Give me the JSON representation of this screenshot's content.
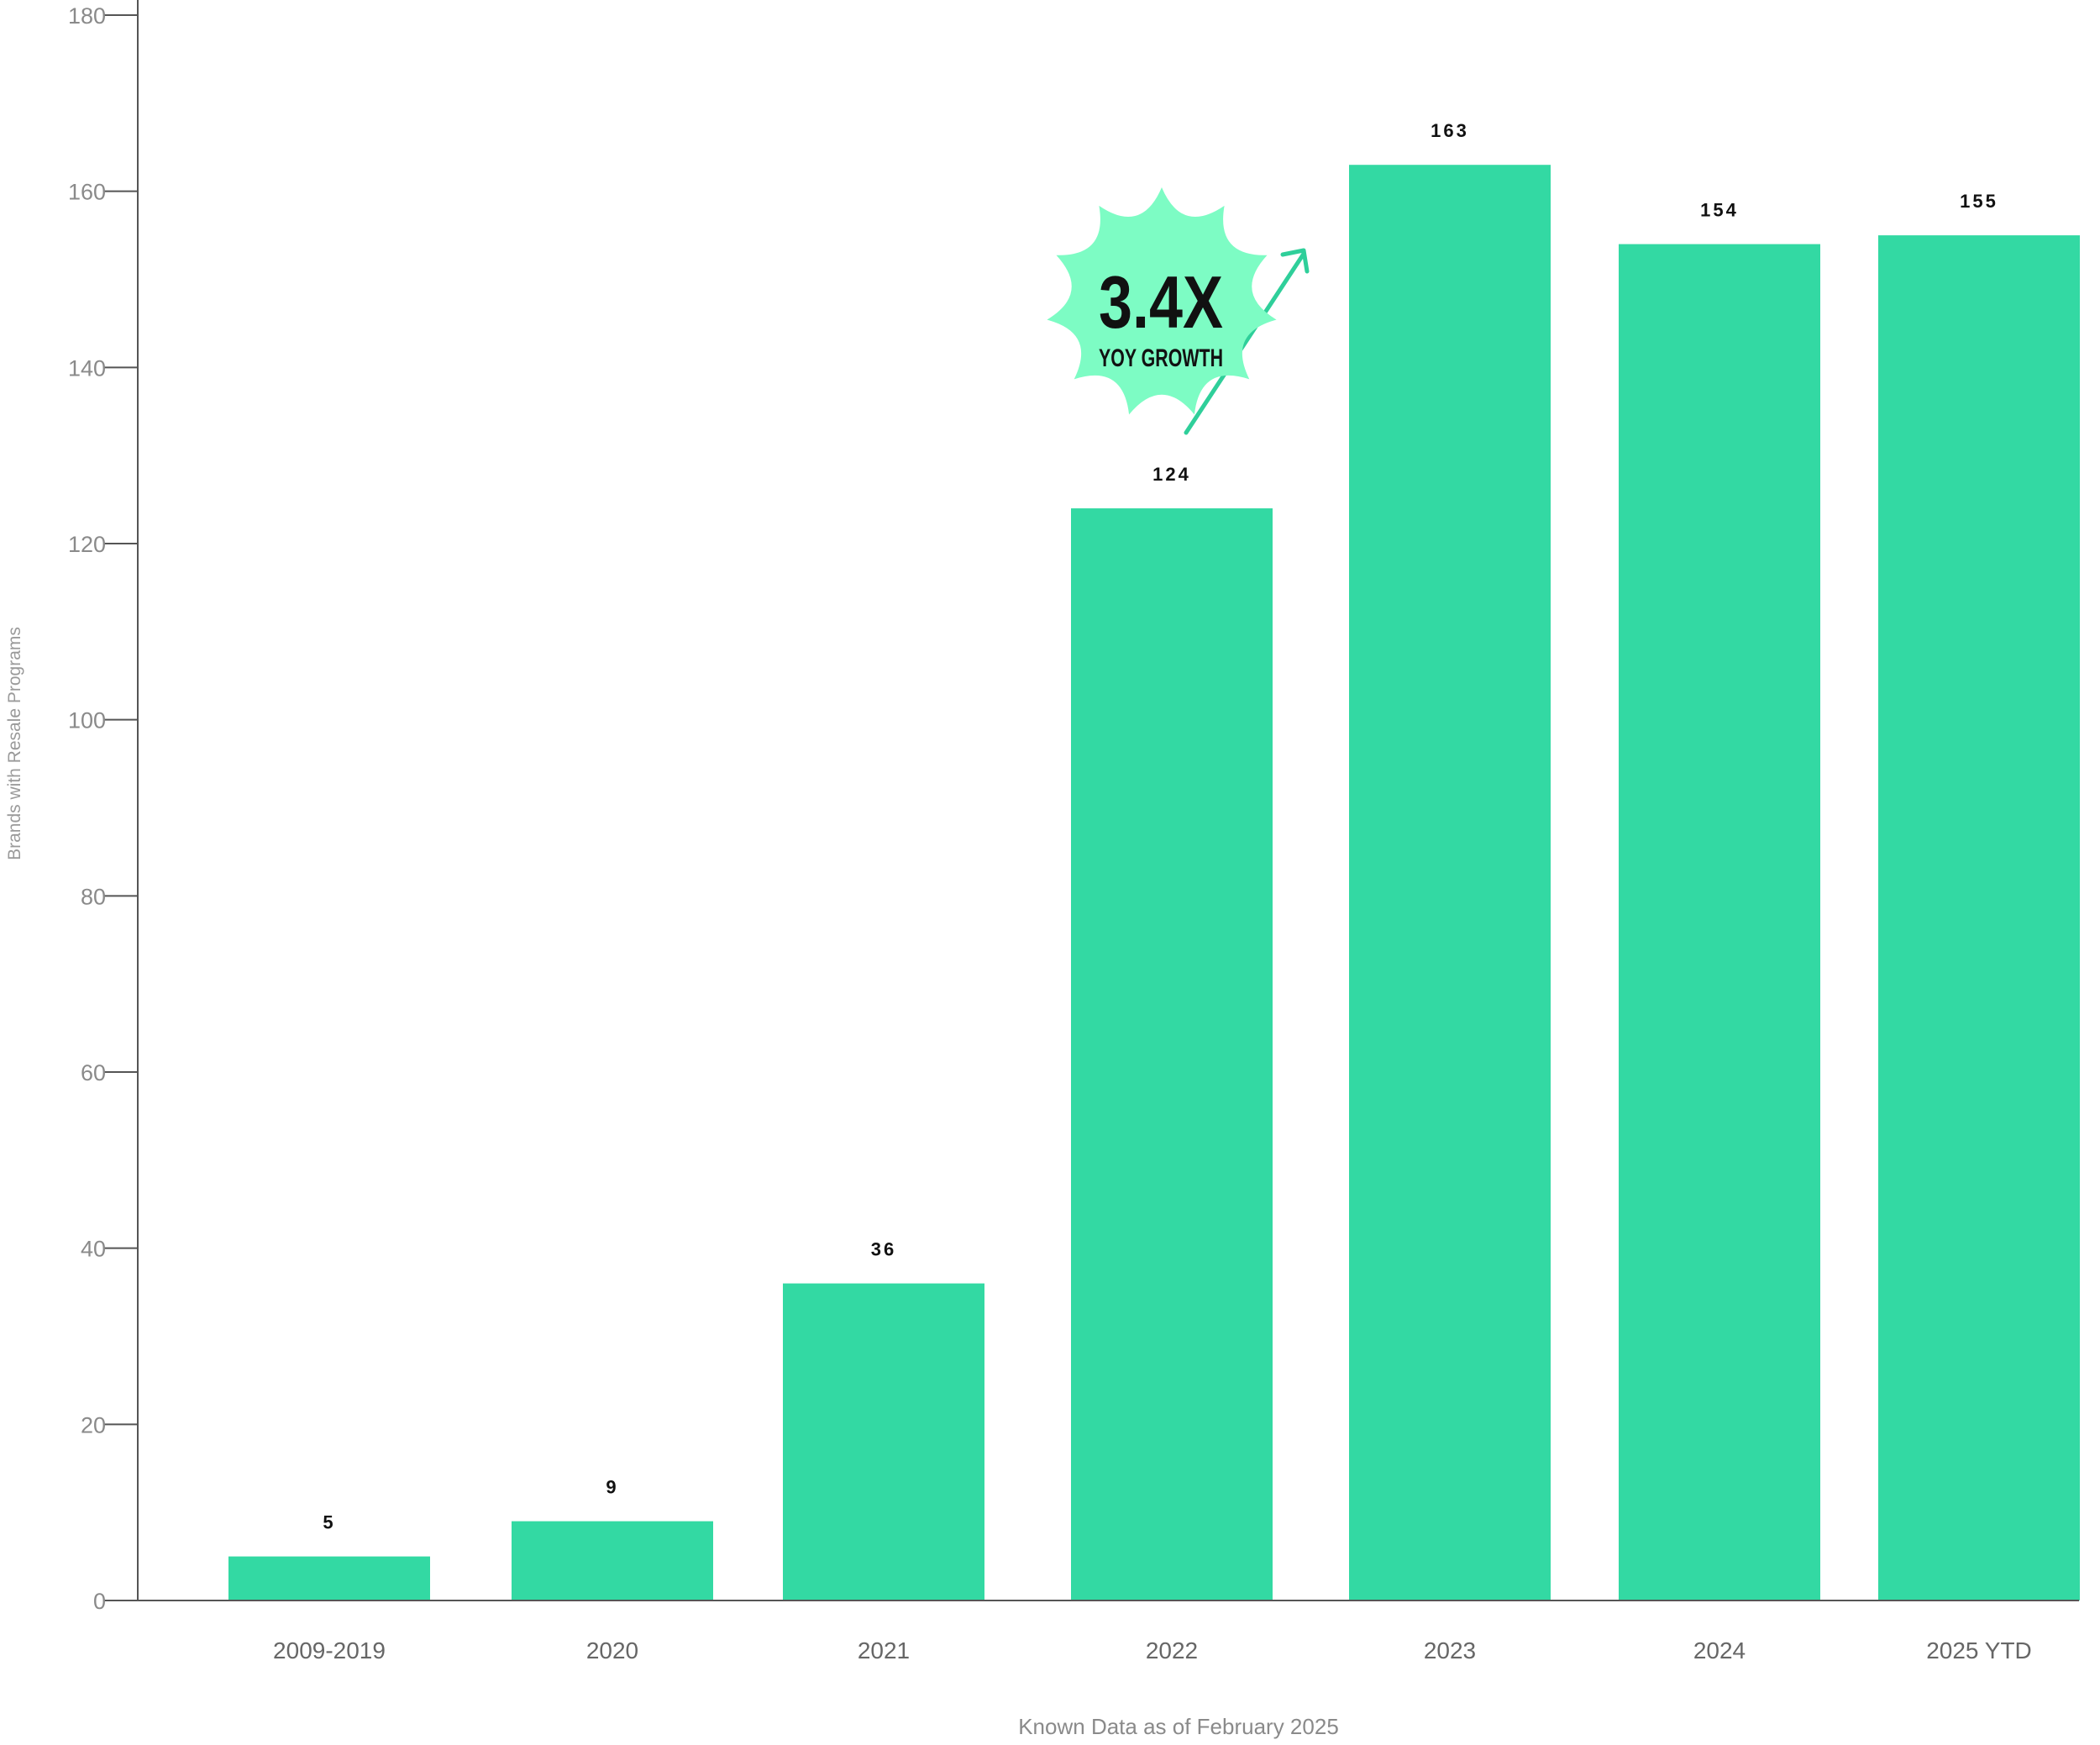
{
  "chart_data": {
    "type": "bar",
    "categories": [
      "2009-2019",
      "2020",
      "2021",
      "2022",
      "2023",
      "2024",
      "2025 YTD"
    ],
    "values": [
      5,
      9,
      36,
      124,
      163,
      154,
      155
    ],
    "ylabel": "Brands with Resale Programs",
    "xlabel": "Known Data as of February 2025",
    "ylim": [
      0,
      180
    ],
    "yticks": [
      0,
      20,
      40,
      60,
      80,
      100,
      120,
      140,
      160,
      180
    ],
    "grid": false,
    "bar_color": "#33d9a3",
    "annotation": {
      "value": "3.4X",
      "text": "YOY GROWTH",
      "badge_color": "#7dfcc4",
      "arrow_color": "#2fcf9a"
    }
  }
}
